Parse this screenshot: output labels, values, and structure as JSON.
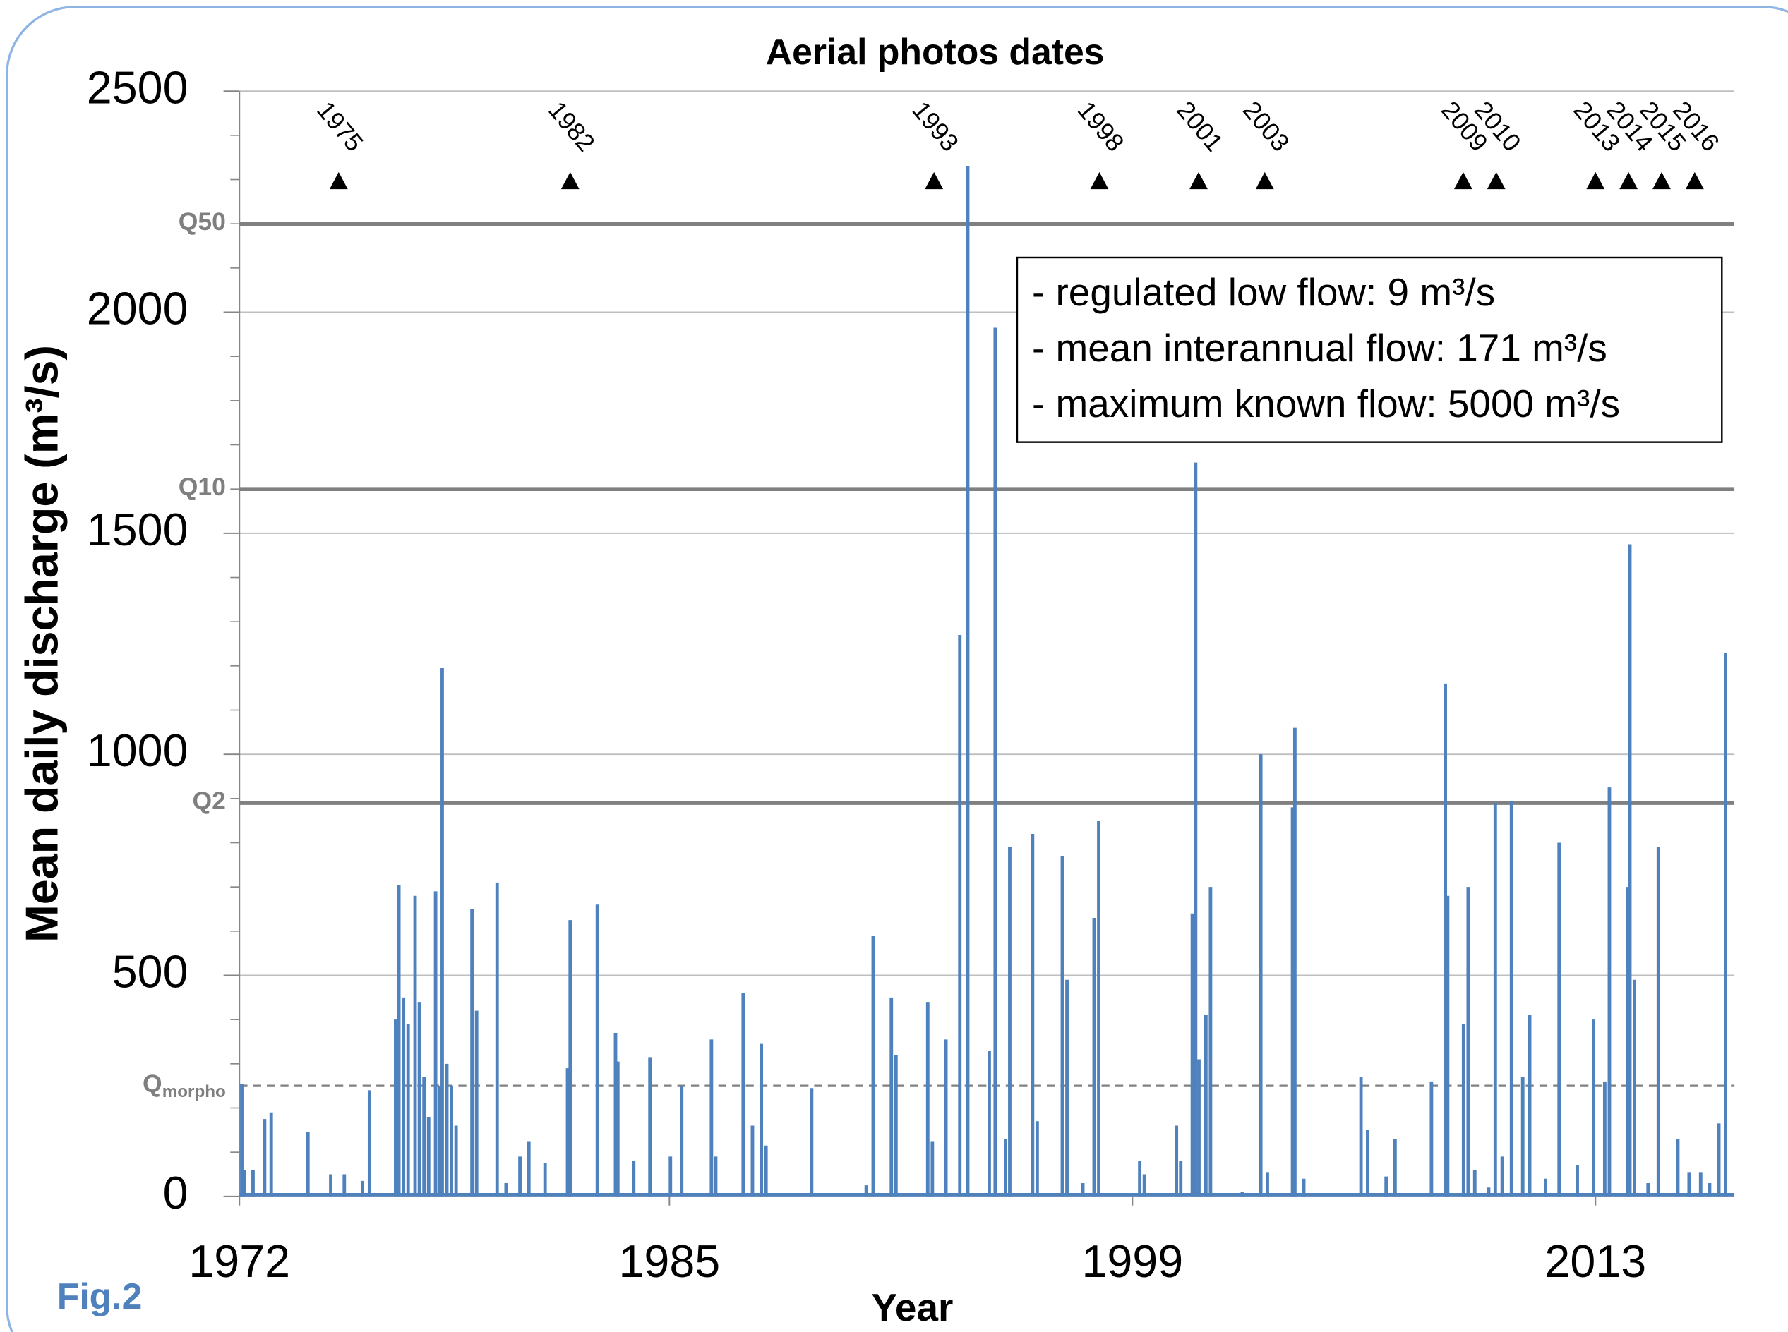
{
  "chart_data": {
    "type": "stem",
    "title": "Aerial photos dates",
    "x_label": "Year",
    "y_label": "Mean daily discharge (m³/s)",
    "figure_label": "Fig.2",
    "color": "#4f81bd",
    "x": [
      1972.07,
      1972.14,
      1972.41,
      1972.76,
      1972.96,
      1974.07,
      1974.76,
      1975.17,
      1975.72,
      1975.93,
      1976.72,
      1976.82,
      1976.96,
      1977.1,
      1977.31,
      1977.44,
      1977.58,
      1977.72,
      1977.93,
      1978.06,
      1978.13,
      1978.27,
      1978.41,
      1978.55,
      1979.03,
      1979.17,
      1979.79,
      1980.06,
      1980.48,
      1980.75,
      1981.24,
      1981.92,
      1982.0,
      1982.82,
      1983.37,
      1983.44,
      1983.92,
      1984.41,
      1985.03,
      1985.37,
      1986.27,
      1986.4,
      1987.23,
      1987.51,
      1987.78,
      1987.92,
      1989.3,
      1990.95,
      1991.16,
      1991.71,
      1991.85,
      1992.81,
      1992.95,
      1993.36,
      1993.78,
      1994.02,
      1994.67,
      1994.85,
      1995.16,
      1995.29,
      1995.98,
      1996.12,
      1996.88,
      1997.02,
      1997.5,
      1997.84,
      1997.98,
      1999.22,
      1999.36,
      2000.33,
      2000.46,
      2000.81,
      2000.91,
      2001.01,
      2001.22,
      2001.36,
      2002.32,
      2002.88,
      2003.08,
      2003.84,
      2003.91,
      2004.18,
      2005.91,
      2006.11,
      2006.67,
      2006.94,
      2008.04,
      2008.46,
      2008.53,
      2009.01,
      2009.15,
      2009.35,
      2009.77,
      2009.97,
      2010.18,
      2010.46,
      2010.8,
      2011.01,
      2011.49,
      2011.9,
      2012.45,
      2012.94,
      2013.28,
      2013.42,
      2013.97,
      2014.04,
      2014.18,
      2014.59,
      2014.9,
      2015.49,
      2015.83,
      2016.18,
      2016.45,
      2016.73,
      2016.93
    ],
    "values": [
      255,
      60,
      60,
      175,
      190,
      145,
      50,
      50,
      35,
      240,
      400,
      705,
      450,
      390,
      680,
      440,
      270,
      180,
      690,
      250,
      1195,
      300,
      250,
      160,
      650,
      420,
      710,
      30,
      90,
      125,
      75,
      290,
      625,
      660,
      370,
      305,
      80,
      315,
      90,
      250,
      355,
      90,
      460,
      160,
      345,
      115,
      245,
      25,
      590,
      450,
      320,
      440,
      125,
      355,
      1270,
      2330,
      330,
      1965,
      130,
      790,
      820,
      170,
      770,
      490,
      30,
      630,
      850,
      80,
      50,
      160,
      80,
      640,
      1660,
      310,
      410,
      700,
      10,
      1000,
      55,
      880,
      1060,
      40,
      270,
      150,
      45,
      130,
      260,
      1160,
      680,
      390,
      700,
      60,
      20,
      890,
      90,
      895,
      270,
      410,
      40,
      800,
      70,
      400,
      260,
      925,
      700,
      1475,
      490,
      30,
      790,
      130,
      55,
      55,
      30,
      165,
      1230
    ],
    "xlim": [
      1972,
      2017.2
    ],
    "xticks": [
      1972,
      1985,
      1999,
      2013
    ],
    "ylim": [
      0,
      2500
    ],
    "yticks": [
      0,
      500,
      1000,
      1500,
      2000,
      2500
    ],
    "yminorticks": [
      100,
      200,
      300,
      400,
      600,
      700,
      800,
      900,
      1100,
      1200,
      1300,
      1400,
      1600,
      1700,
      1800,
      1900,
      2100,
      2200,
      2300,
      2400
    ],
    "grid": true,
    "reference_lines": [
      {
        "label": "Q50",
        "value": 2200,
        "style": "solid"
      },
      {
        "label": "Q10",
        "value": 1600,
        "style": "solid"
      },
      {
        "label": "Q2",
        "value": 890,
        "style": "solid"
      },
      {
        "label": "Q",
        "sub": "morpho",
        "value": 250,
        "style": "dashed"
      }
    ],
    "photo_dates": [
      1975,
      1982,
      1993,
      1998,
      2001,
      2003,
      2009,
      2010,
      2013,
      2014,
      2015,
      2016
    ],
    "annotations": [
      "- regulated low flow: 9 m³/s",
      "- mean interannual flow: 171 m³/s",
      "- maximum known flow: 5000 m³/s"
    ]
  }
}
